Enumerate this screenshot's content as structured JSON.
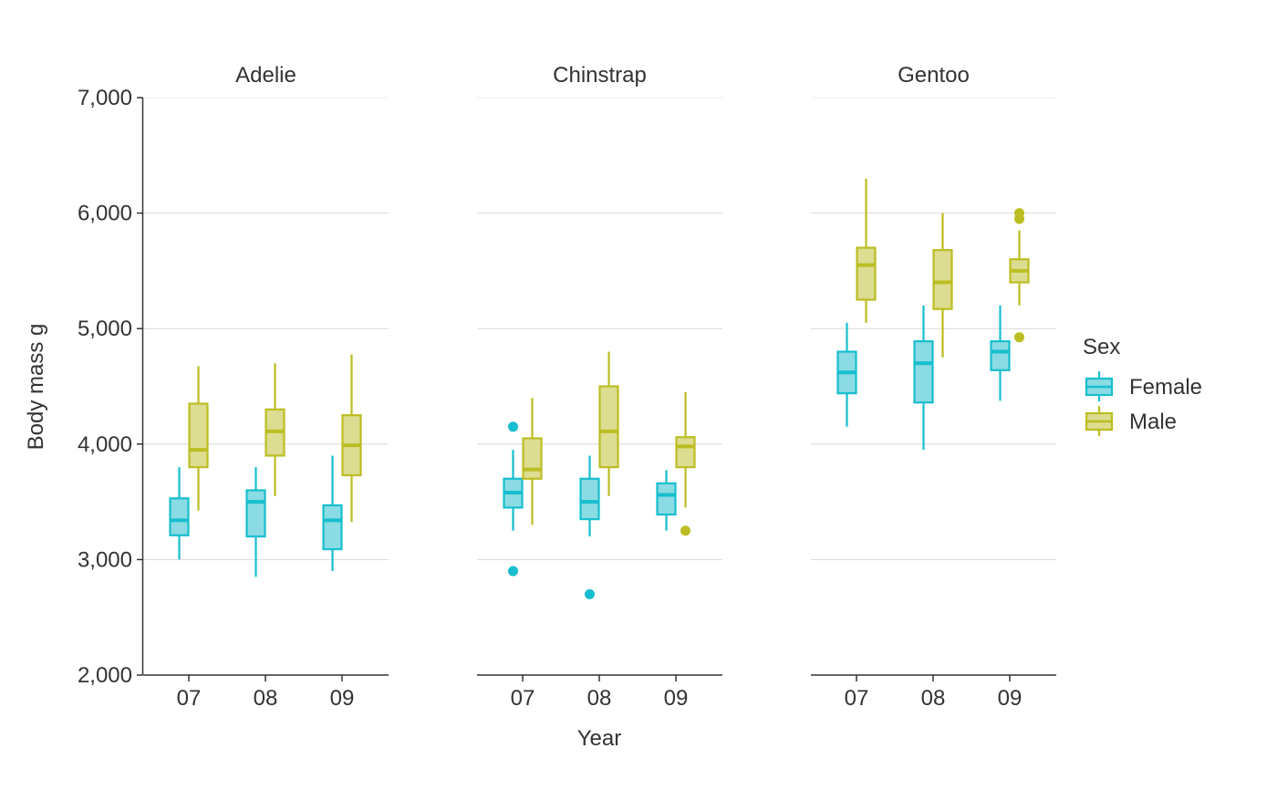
{
  "chart_data": {
    "type": "boxplot",
    "facet_by": "species",
    "xlabel": "Year",
    "ylabel": "Body mass g",
    "ylim": [
      2000,
      7000
    ],
    "y_ticks": [
      2000,
      3000,
      4000,
      5000,
      6000,
      7000
    ],
    "y_tick_labels": [
      "2,000",
      "3,000",
      "4,000",
      "5,000",
      "6,000",
      "7,000"
    ],
    "categories": [
      "07",
      "08",
      "09"
    ],
    "grid": "horizontal",
    "legend": {
      "title": "Sex",
      "position": "right",
      "items": [
        {
          "label": "Female",
          "color": "#17becf"
        },
        {
          "label": "Male",
          "color": "#bcbd22"
        }
      ]
    },
    "facets": [
      {
        "title": "Adelie",
        "series": [
          {
            "name": "Female",
            "color": "#17becf",
            "boxes": [
              {
                "year": "07",
                "whisker_low": 3000,
                "q1": 3210,
                "median": 3340,
                "q3": 3530,
                "whisker_high": 3800,
                "outliers": []
              },
              {
                "year": "08",
                "whisker_low": 2850,
                "q1": 3200,
                "median": 3500,
                "q3": 3600,
                "whisker_high": 3800,
                "outliers": []
              },
              {
                "year": "09",
                "whisker_low": 2900,
                "q1": 3090,
                "median": 3340,
                "q3": 3470,
                "whisker_high": 3900,
                "outliers": []
              }
            ]
          },
          {
            "name": "Male",
            "color": "#bcbd22",
            "boxes": [
              {
                "year": "07",
                "whisker_low": 3425,
                "q1": 3800,
                "median": 3950,
                "q3": 4350,
                "whisker_high": 4675,
                "outliers": []
              },
              {
                "year": "08",
                "whisker_low": 3550,
                "q1": 3900,
                "median": 4110,
                "q3": 4300,
                "whisker_high": 4700,
                "outliers": []
              },
              {
                "year": "09",
                "whisker_low": 3325,
                "q1": 3730,
                "median": 3990,
                "q3": 4250,
                "whisker_high": 4775,
                "outliers": []
              }
            ]
          }
        ]
      },
      {
        "title": "Chinstrap",
        "series": [
          {
            "name": "Female",
            "color": "#17becf",
            "boxes": [
              {
                "year": "07",
                "whisker_low": 3250,
                "q1": 3450,
                "median": 3580,
                "q3": 3700,
                "whisker_high": 3950,
                "outliers": [
                  4150,
                  2900
                ]
              },
              {
                "year": "08",
                "whisker_low": 3200,
                "q1": 3350,
                "median": 3500,
                "q3": 3700,
                "whisker_high": 3900,
                "outliers": [
                  2700
                ]
              },
              {
                "year": "09",
                "whisker_low": 3250,
                "q1": 3390,
                "median": 3560,
                "q3": 3660,
                "whisker_high": 3775,
                "outliers": []
              }
            ]
          },
          {
            "name": "Male",
            "color": "#bcbd22",
            "boxes": [
              {
                "year": "07",
                "whisker_low": 3300,
                "q1": 3700,
                "median": 3780,
                "q3": 4050,
                "whisker_high": 4400,
                "outliers": []
              },
              {
                "year": "08",
                "whisker_low": 3550,
                "q1": 3800,
                "median": 4110,
                "q3": 4500,
                "whisker_high": 4800,
                "outliers": []
              },
              {
                "year": "09",
                "whisker_low": 3450,
                "q1": 3800,
                "median": 3980,
                "q3": 4060,
                "whisker_high": 4450,
                "outliers": [
                  3250
                ]
              }
            ]
          }
        ]
      },
      {
        "title": "Gentoo",
        "series": [
          {
            "name": "Female",
            "color": "#17becf",
            "boxes": [
              {
                "year": "07",
                "whisker_low": 4150,
                "q1": 4440,
                "median": 4620,
                "q3": 4800,
                "whisker_high": 5050,
                "outliers": []
              },
              {
                "year": "08",
                "whisker_low": 3950,
                "q1": 4360,
                "median": 4700,
                "q3": 4890,
                "whisker_high": 5200,
                "outliers": []
              },
              {
                "year": "09",
                "whisker_low": 4375,
                "q1": 4640,
                "median": 4800,
                "q3": 4890,
                "whisker_high": 5200,
                "outliers": []
              }
            ]
          },
          {
            "name": "Male",
            "color": "#bcbd22",
            "boxes": [
              {
                "year": "07",
                "whisker_low": 5050,
                "q1": 5250,
                "median": 5550,
                "q3": 5700,
                "whisker_high": 6300,
                "outliers": []
              },
              {
                "year": "08",
                "whisker_low": 4750,
                "q1": 5170,
                "median": 5400,
                "q3": 5680,
                "whisker_high": 6000,
                "outliers": []
              },
              {
                "year": "09",
                "whisker_low": 5200,
                "q1": 5400,
                "median": 5500,
                "q3": 5600,
                "whisker_high": 5850,
                "outliers": [
                  6000,
                  5950,
                  4925
                ]
              }
            ]
          }
        ]
      }
    ]
  }
}
